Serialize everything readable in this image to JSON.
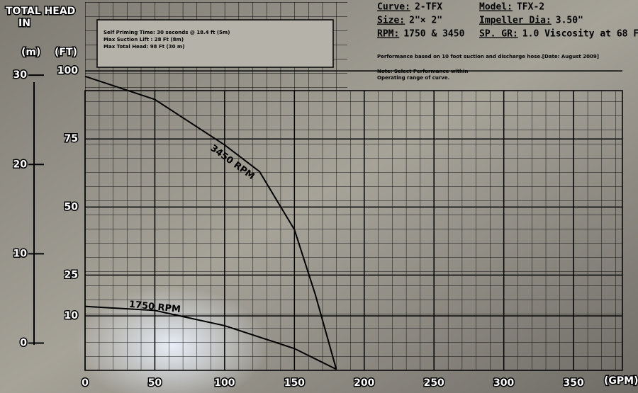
{
  "chart_data": {
    "type": "line",
    "title": [
      "TOTAL HEAD",
      "IN"
    ],
    "y_unit": "(FT)",
    "y2_unit": "(m)",
    "x_unit": "(GPM)",
    "xlim": [
      0,
      385
    ],
    "xticks": [
      0,
      50,
      100,
      150,
      200,
      250,
      300,
      350
    ],
    "ylim": [
      -10,
      125
    ],
    "yticks": [
      10,
      25,
      50,
      75,
      100
    ],
    "y2lim": [
      -3.05,
      38.1
    ],
    "y2ticks": [
      0,
      10,
      20,
      30
    ],
    "series": [
      {
        "name": "3450 RPM",
        "color": "#000000",
        "x": [
          0,
          50,
          100,
          125,
          150,
          165,
          180
        ],
        "values": [
          98,
          89.5,
          72.8,
          63,
          41.7,
          17.8,
          -9.6
        ]
      },
      {
        "name": "1750 RPM",
        "color": "#000000",
        "x": [
          0,
          50,
          100,
          150,
          180
        ],
        "values": [
          13.5,
          12,
          6.4,
          -2,
          -9.6
        ]
      }
    ],
    "info_box": [
      "Self Priming Time: 30 seconds @ 18.4 ft (5m)",
      "Max Suction Lift : 28 Ft (8m)",
      "Max Total Head: 98 Ft (30 m)"
    ],
    "header": [
      {
        "label": "Curve:",
        "value": "2-TFX"
      },
      {
        "label": "Model:",
        "value": "TFX-2"
      },
      {
        "label": "Size:",
        "value": "2\"× 2\""
      },
      {
        "label": "Impeller Dia:",
        "value": "3.50\""
      },
      {
        "label": "RPM:",
        "value": "1750 & 3450"
      },
      {
        "label": "SP. GR:",
        "value": "1.0 Viscosity at 68 F"
      }
    ],
    "performance_note": "Performance based on 10 foot suction and discharge hose.[Date: August 2009]",
    "select_note": [
      "Note: Select Performance within",
      "Operating range of curve."
    ]
  }
}
